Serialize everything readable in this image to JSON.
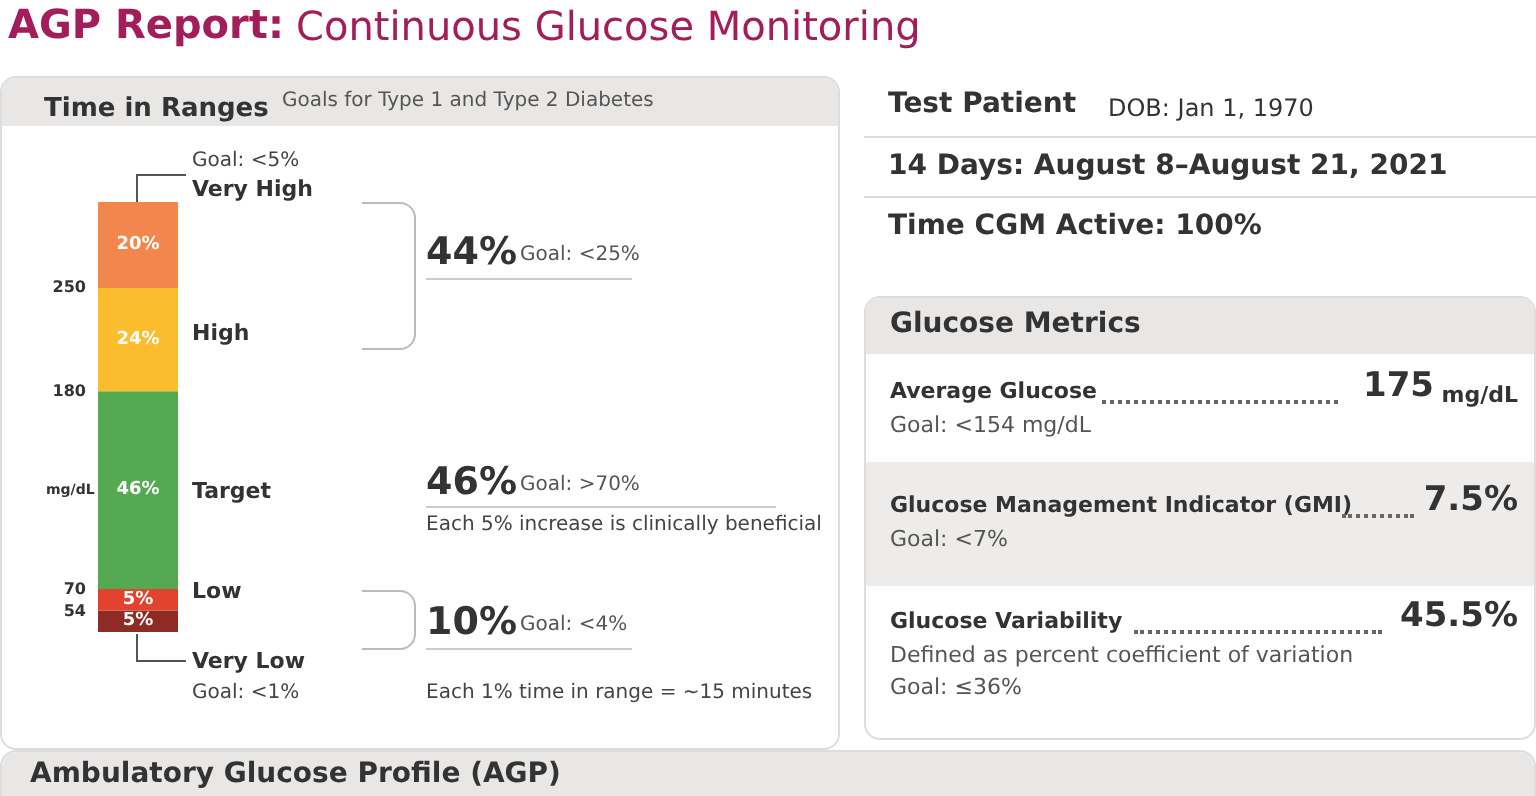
{
  "chart_data": [
    {
      "type": "other",
      "title": "AGP Report:",
      "subtitle": "Continuous Glucose Monitoring"
    },
    {
      "type": "bar",
      "title": "Time in Ranges",
      "ylabel": "mg/dL",
      "categories": [
        null
      ],
      "stacked": true,
      "legend": false,
      "series": [
        {
          "name": "Very Low",
          "color": "#8e2b24",
          "values": [
            5
          ],
          "value_labels": [
            "5%"
          ]
        },
        {
          "name": "Low",
          "color": "#e2432f",
          "values": [
            5
          ],
          "value_labels": [
            "5%"
          ]
        },
        {
          "name": "Target",
          "color": "#55a951",
          "values": [
            46
          ],
          "value_labels": [
            "46%"
          ]
        },
        {
          "name": "High",
          "color": "#fbbc2d",
          "values": [
            24
          ],
          "value_labels": [
            "24%"
          ]
        },
        {
          "name": "Very High",
          "color": "#f1874c",
          "values": [
            20
          ],
          "value_labels": [
            "20%"
          ]
        }
      ],
      "annotations": [
        "Goal: <5%",
        "44%",
        "Goal: <25%",
        "46%",
        "Goal: >70%",
        "Each 5% increase is clinically beneficial",
        "10%",
        "Goal: <4%",
        "Goal: <1%",
        "Each 1% time in range = ~15 minutes",
        "250",
        "180",
        "70",
        "54",
        "Goals for Type 1 and Type 2 Diabetes"
      ]
    },
    {
      "type": "other",
      "title": "Test Patient",
      "annotations": [
        "DOB: Jan 1, 1970",
        "14 Days: August 8–August 21, 2021",
        "Time CGM Active: 100%"
      ]
    },
    {
      "type": "other",
      "title": "Glucose Metrics",
      "annotations": [
        "Average Glucose",
        "175",
        "mg/dL",
        "Goal: <154 mg/dL",
        "Glucose Management Indicator (GMI)",
        "7.5%",
        "Goal: <7%",
        "Glucose Variability",
        "45.5%",
        "Defined as percent coefficient of variation",
        "Goal: ≤36%"
      ]
    },
    {
      "type": "other",
      "title": "Ambulatory Glucose Profile (AGP)"
    }
  ]
}
